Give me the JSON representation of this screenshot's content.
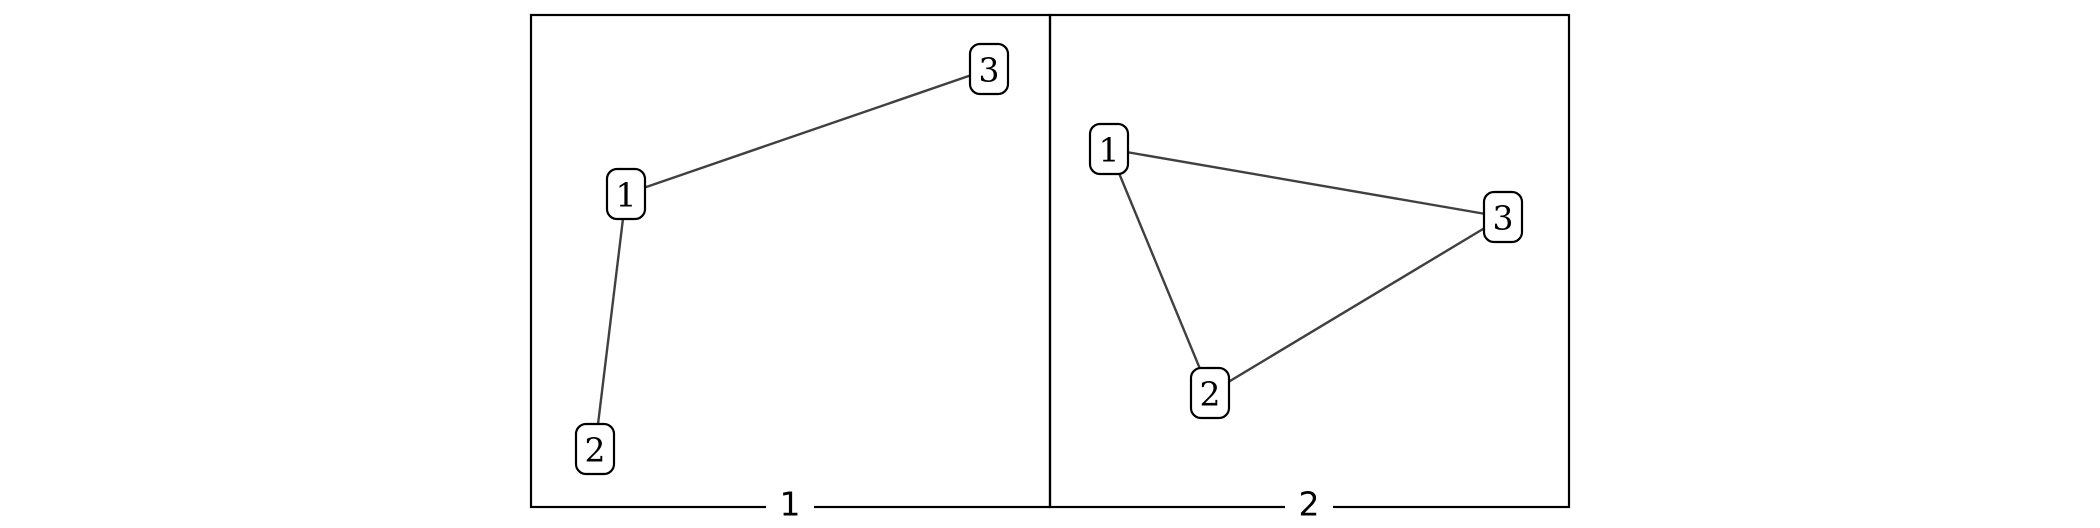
{
  "panels": [
    {
      "label": "1",
      "nodes": [
        {
          "id": "1",
          "label": "1"
        },
        {
          "id": "2",
          "label": "2"
        },
        {
          "id": "3",
          "label": "3"
        }
      ],
      "edges": [
        [
          "1",
          "3"
        ],
        [
          "1",
          "2"
        ]
      ]
    },
    {
      "label": "2",
      "nodes": [
        {
          "id": "1",
          "label": "1"
        },
        {
          "id": "2",
          "label": "2"
        },
        {
          "id": "3",
          "label": "3"
        }
      ],
      "edges": [
        [
          "1",
          "3"
        ],
        [
          "1",
          "2"
        ],
        [
          "2",
          "3"
        ]
      ]
    }
  ]
}
